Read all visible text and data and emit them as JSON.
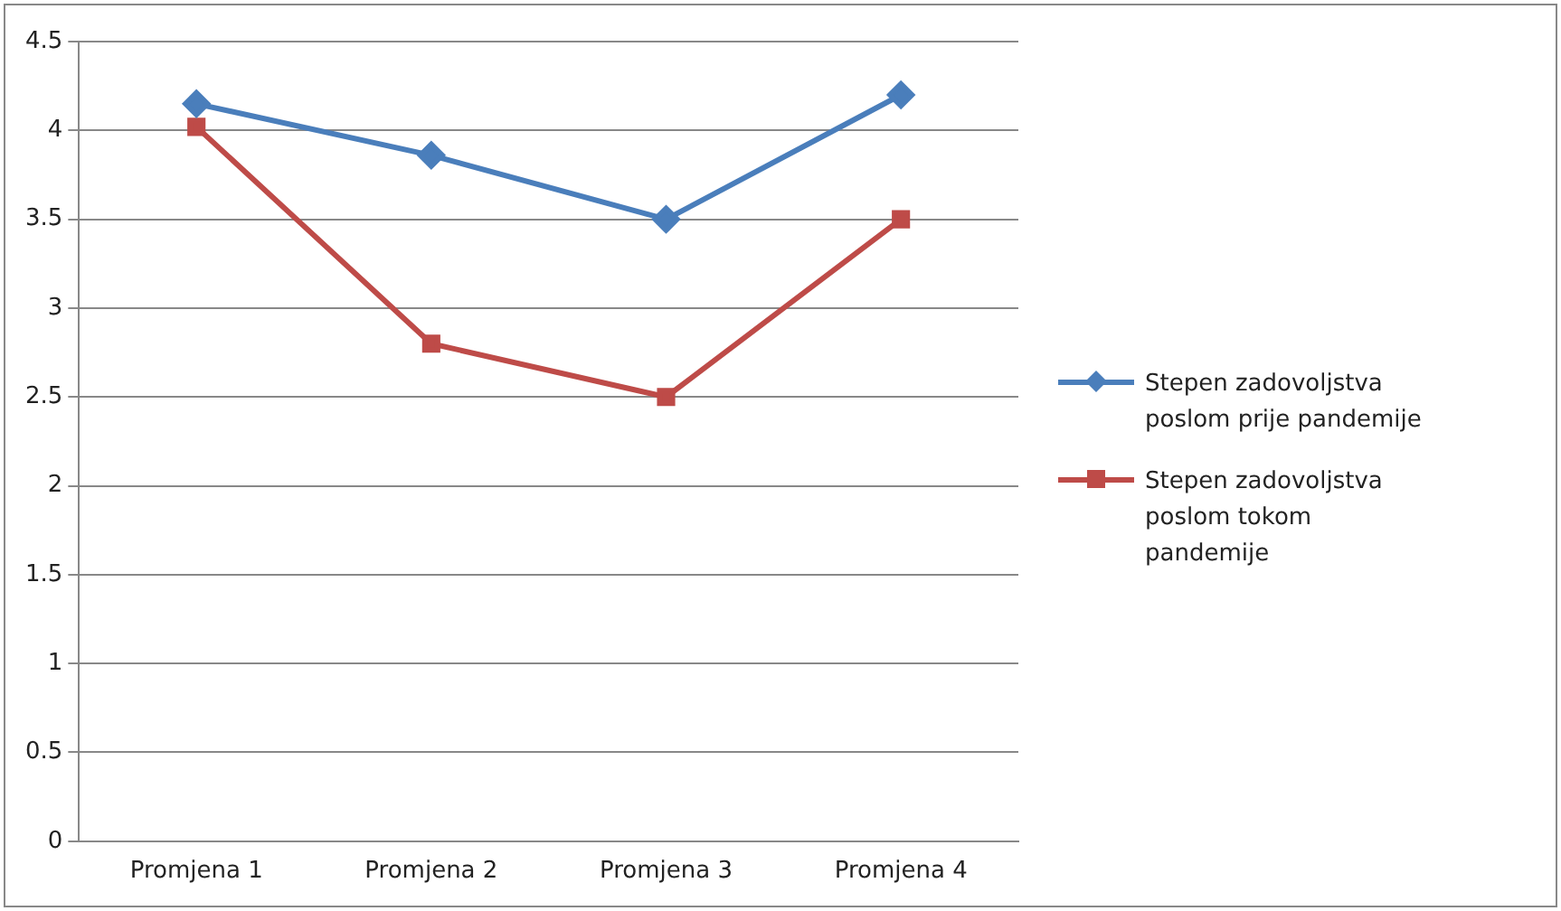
{
  "chart_data": {
    "type": "line",
    "categories": [
      "Promjena 1",
      "Promjena 2",
      "Promjena 3",
      "Promjena 4"
    ],
    "series": [
      {
        "name": "Stepen zadovoljstva poslom prije pandemije",
        "color": "#4a7ebb",
        "marker": "diamond",
        "values": [
          4.15,
          3.86,
          3.5,
          4.2
        ]
      },
      {
        "name": "Stepen zadovoljstva poslom tokom pandemije",
        "color": "#be4b48",
        "marker": "square",
        "values": [
          4.02,
          2.8,
          2.5,
          3.5
        ]
      }
    ],
    "ylim": [
      0,
      4.5
    ],
    "yticks": [
      0,
      0.5,
      1,
      1.5,
      2,
      2.5,
      3,
      3.5,
      4,
      4.5
    ],
    "grid": "y",
    "legend": "right"
  }
}
